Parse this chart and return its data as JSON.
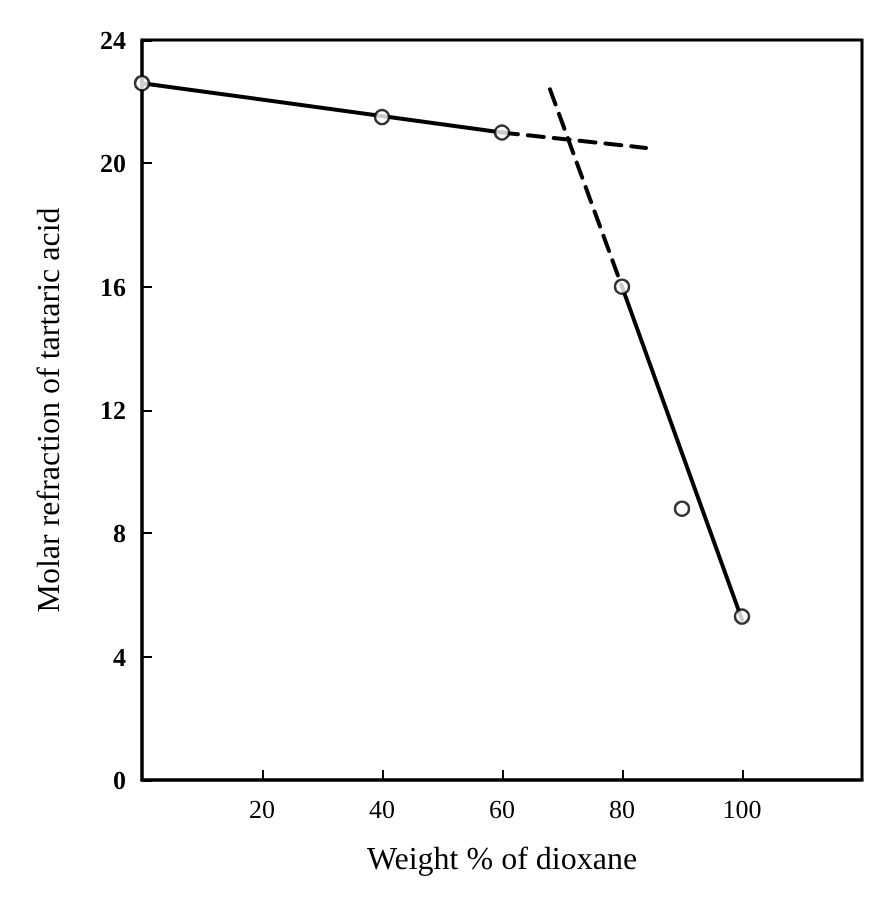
{
  "chart_data": {
    "type": "line",
    "xlabel": "Weight % of dioxane",
    "ylabel": "Molar refraction of tartaric acid",
    "xlim": [
      0,
      120
    ],
    "xticks": [
      20,
      40,
      60,
      80,
      100
    ],
    "ylim": [
      0,
      24
    ],
    "yticks": [
      0,
      4,
      8,
      12,
      16,
      20,
      24
    ],
    "grid": false,
    "series": [
      {
        "type": "scatter",
        "marker": "circle",
        "color": "#000000",
        "x": [
          0,
          40,
          60,
          80,
          90,
          100
        ],
        "values": [
          22.6,
          21.5,
          21.0,
          16.0,
          8.8,
          5.3
        ]
      },
      {
        "marker": "none",
        "line_style": "solid",
        "color": "#000000",
        "x": [
          0,
          60
        ],
        "values": [
          22.6,
          21.0
        ]
      },
      {
        "marker": "none",
        "line_style": "dashed",
        "color": "#000000",
        "x": [
          60,
          84
        ],
        "values": [
          21.0,
          20.5
        ]
      },
      {
        "marker": "none",
        "line_style": "dashed",
        "color": "#000000",
        "x": [
          68,
          80
        ],
        "values": [
          22.4,
          16.0
        ]
      },
      {
        "marker": "none",
        "line_style": "solid",
        "color": "#000000",
        "x": [
          80,
          100
        ],
        "values": [
          16.0,
          5.2
        ]
      }
    ]
  }
}
